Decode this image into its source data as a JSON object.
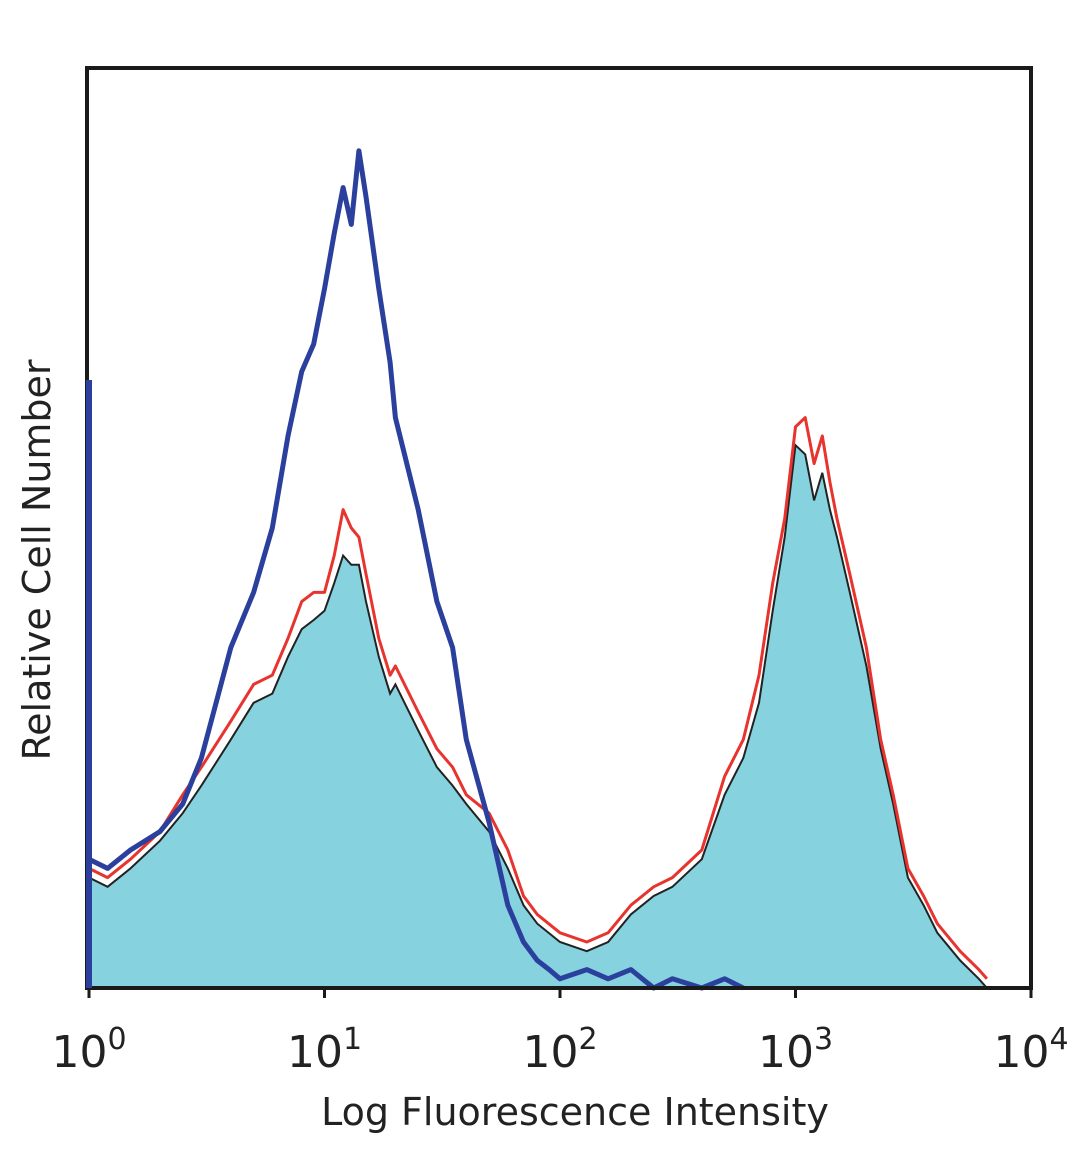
{
  "chart_data": {
    "type": "area",
    "title": "",
    "xlabel": "Log Fluorescence Intensity",
    "ylabel": "Relative Cell Number",
    "x_scale": "log",
    "xlim": [
      1,
      10000
    ],
    "ylim": [
      0,
      100
    ],
    "x_ticks": [
      {
        "value": 1,
        "base": "10",
        "exp": "0"
      },
      {
        "value": 10,
        "base": "10",
        "exp": "1"
      },
      {
        "value": 100,
        "base": "10",
        "exp": "2"
      },
      {
        "value": 1000,
        "base": "10",
        "exp": "3"
      },
      {
        "value": 10000,
        "base": "10",
        "exp": "4"
      }
    ],
    "grid": false,
    "legend": "none",
    "series": [
      {
        "style": "filled",
        "fill_color": "#86d3df",
        "edge_color": "#222222",
        "x": [
          1,
          1.2,
          1.5,
          2,
          2.5,
          3,
          4,
          5,
          6,
          7,
          8,
          9,
          10,
          11,
          12,
          13,
          14,
          15,
          17,
          19,
          20,
          25,
          30,
          35,
          40,
          50,
          60,
          70,
          80,
          100,
          130,
          160,
          200,
          250,
          300,
          400,
          500,
          600,
          700,
          800,
          900,
          1000,
          1100,
          1200,
          1300,
          1400,
          1500,
          1700,
          2000,
          2300,
          2600,
          3000,
          3500,
          4000,
          5000,
          6000,
          6500
        ],
        "y": [
          12,
          11,
          13,
          16,
          19,
          22,
          27,
          31,
          32,
          36,
          39,
          40,
          41,
          44,
          47,
          46,
          46,
          42,
          36,
          32,
          33,
          28,
          24,
          22,
          20,
          17,
          13,
          9,
          7,
          5,
          4,
          5,
          8,
          10,
          11,
          14,
          21,
          25,
          31,
          41,
          49,
          59,
          58,
          53,
          56,
          52,
          49,
          43,
          35,
          26,
          20,
          12,
          9,
          6,
          3,
          1,
          0
        ]
      },
      {
        "style": "line",
        "line_color": "#e8342e",
        "x": [
          1,
          1.2,
          1.5,
          2,
          2.5,
          3,
          4,
          5,
          6,
          7,
          8,
          9,
          10,
          11,
          12,
          13,
          14,
          15,
          17,
          19,
          20,
          25,
          30,
          35,
          40,
          50,
          60,
          70,
          80,
          100,
          130,
          160,
          200,
          250,
          300,
          400,
          500,
          600,
          700,
          800,
          900,
          1000,
          1100,
          1200,
          1300,
          1400,
          1500,
          1700,
          2000,
          2300,
          2600,
          3000,
          3500,
          4000,
          5000,
          6000,
          6500
        ],
        "y": [
          13,
          12,
          14,
          17,
          21,
          24,
          29,
          33,
          34,
          38,
          42,
          43,
          43,
          47,
          52,
          50,
          49,
          45,
          38,
          34,
          35,
          30,
          26,
          24,
          21,
          19,
          15,
          10,
          8,
          6,
          5,
          6,
          9,
          11,
          12,
          15,
          23,
          27,
          34,
          44,
          51,
          61,
          62,
          57,
          60,
          55,
          51,
          45,
          37,
          27,
          21,
          13,
          10,
          7,
          4,
          2,
          1
        ]
      },
      {
        "style": "line",
        "line_color": "#2b3f9c",
        "x": [
          1,
          1.2,
          1.5,
          2,
          2.5,
          3,
          4,
          5,
          6,
          7,
          8,
          9,
          10,
          11,
          12,
          13,
          14,
          15,
          17,
          19,
          20,
          25,
          30,
          35,
          40,
          50,
          60,
          70,
          80,
          90,
          100,
          130,
          160,
          200,
          250,
          300,
          400,
          500,
          600
        ],
        "y": [
          14,
          13,
          15,
          17,
          20,
          25,
          37,
          43,
          50,
          60,
          67,
          70,
          76,
          82,
          87,
          83,
          91,
          86,
          76,
          68,
          62,
          52,
          42,
          37,
          27,
          18,
          9,
          5,
          3,
          2,
          1,
          2,
          1,
          2,
          0,
          1,
          0,
          1,
          0
        ]
      }
    ]
  }
}
